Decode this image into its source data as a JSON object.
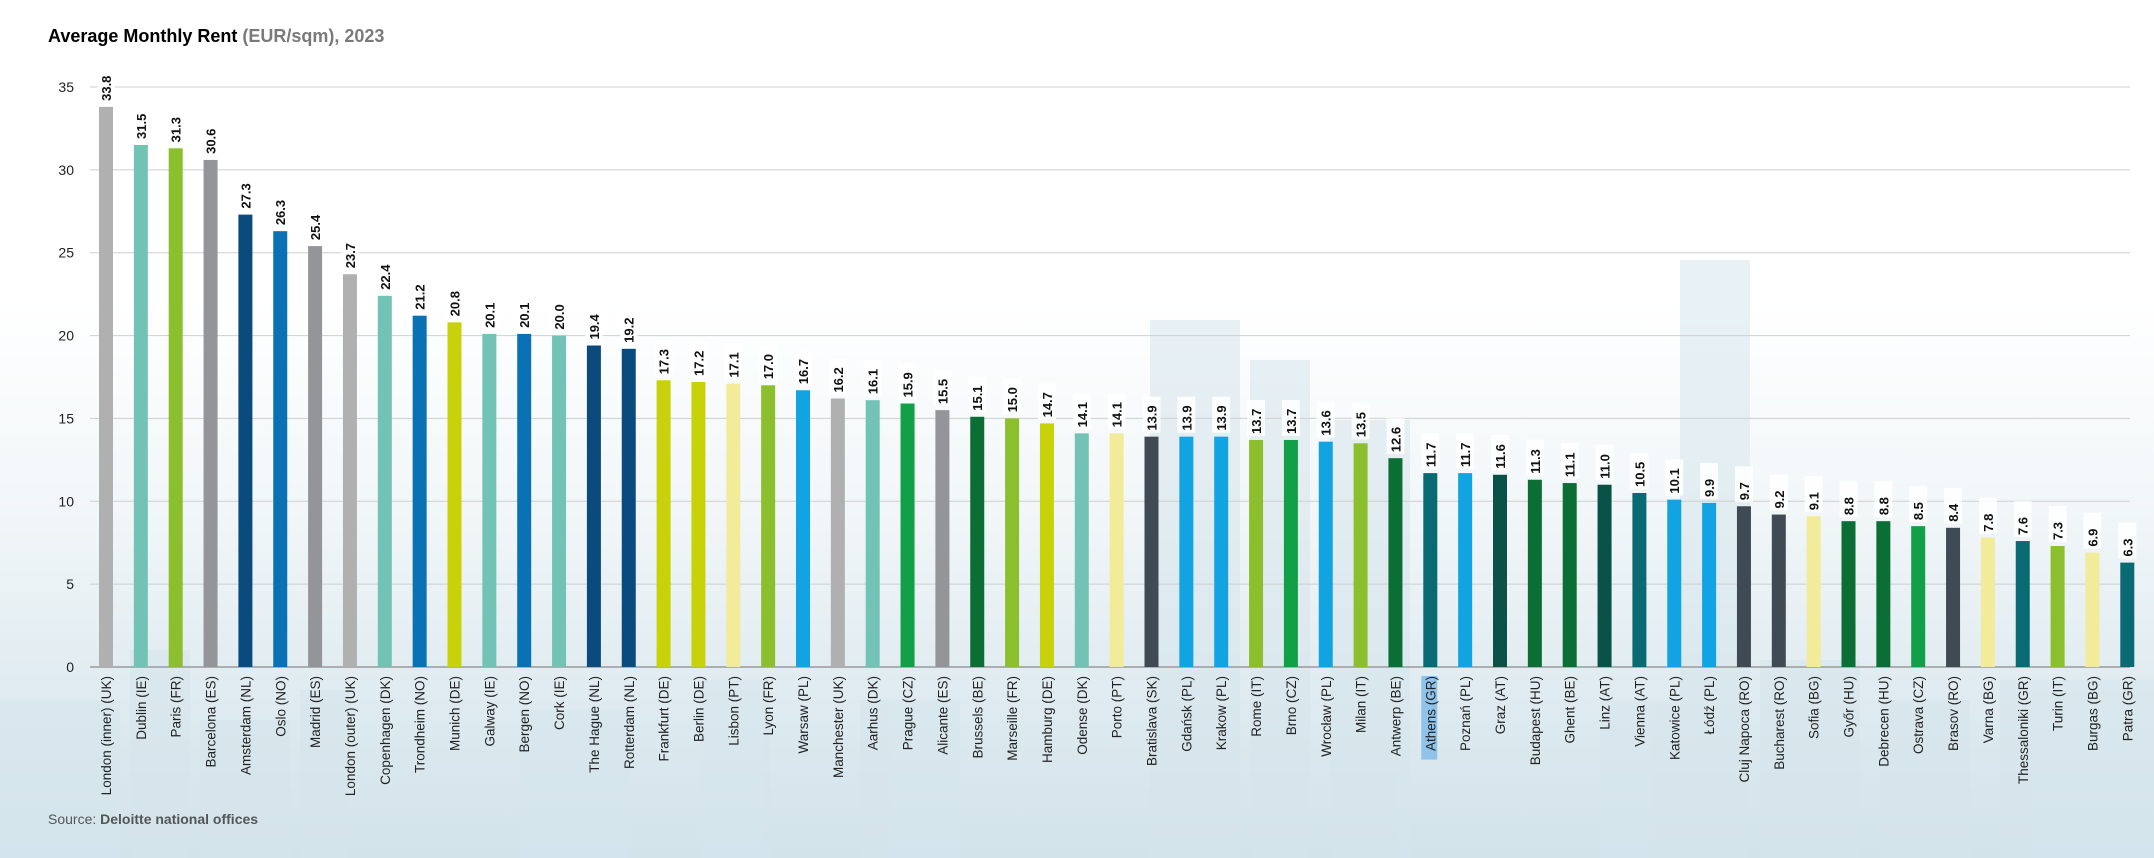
{
  "title": {
    "main": "Average Monthly Rent",
    "unit": "(EUR/sqm), 2023"
  },
  "source": {
    "label": "Source:",
    "value": "Deloitte national offices"
  },
  "chart_data": {
    "type": "bar",
    "title": "Average Monthly Rent (EUR/sqm), 2023",
    "ylim": [
      0,
      35
    ],
    "yticks": [
      0,
      5,
      10,
      15,
      20,
      25,
      30,
      35
    ],
    "grid": true,
    "categories": [
      "London (inner) (UK)",
      "Dublin (IE)",
      "Paris (FR)",
      "Barcelona (ES)",
      "Amsterdam (NL)",
      "Oslo (NO)",
      "Madrid (ES)",
      "London (outer) (UK)",
      "Copenhagen (DK)",
      "Trondheim (NO)",
      "Munich (DE)",
      "Galway (IE)",
      "Bergen (NO)",
      "Cork (IE)",
      "The Hague (NL)",
      "Rotterdam (NL)",
      "Frankfurt (DE)",
      "Berlin (DE)",
      "Lisbon (PT)",
      "Lyon (FR)",
      "Warsaw (PL)",
      "Manchester (UK)",
      "Aarhus (DK)",
      "Prague (CZ)",
      "Alicante (ES)",
      "Brussels (BE)",
      "Marseille (FR)",
      "Hamburg (DE)",
      "Odense (DK)",
      "Porto (PT)",
      "Bratislava (SK)",
      "Gdańsk (PL)",
      "Krakow (PL)",
      "Rome (IT)",
      "Brno (CZ)",
      "Wrocław (PL)",
      "Milan (IT)",
      "Antwerp (BE)",
      "Athens (GR)",
      "Poznań (PL)",
      "Graz (AT)",
      "Budapest (HU)",
      "Ghent (BE)",
      "Linz (AT)",
      "Vienna (AT)",
      "Katowice (PL)",
      "Łódź (PL)",
      "Cluj Napoca (RO)",
      "Bucharest (RO)",
      "Sofia (BG)",
      "Győr (HU)",
      "Debrecen (HU)",
      "Ostrava (CZ)",
      "Brasov (RO)",
      "Varna (BG)",
      "Thessaloniki (GR)",
      "Turin (IT)",
      "Burgas (BG)",
      "Patra (GR)"
    ],
    "values": [
      33.8,
      31.5,
      31.3,
      30.6,
      27.3,
      26.3,
      25.4,
      23.7,
      22.4,
      21.2,
      20.8,
      20.1,
      20.1,
      20.0,
      19.4,
      19.2,
      17.3,
      17.2,
      17.1,
      17.0,
      16.7,
      16.2,
      16.1,
      15.9,
      15.5,
      15.1,
      15.0,
      14.7,
      14.1,
      14.1,
      13.9,
      13.9,
      13.9,
      13.7,
      13.7,
      13.6,
      13.5,
      12.6,
      11.7,
      11.7,
      11.6,
      11.3,
      11.1,
      11.0,
      10.5,
      10.1,
      9.9,
      9.7,
      9.2,
      9.1,
      8.8,
      8.8,
      8.5,
      8.4,
      7.8,
      7.6,
      7.3,
      6.9,
      6.3
    ],
    "colors": [
      "#b0b0b0",
      "#72c3b6",
      "#8cbf2d",
      "#939598",
      "#0a4a7c",
      "#0a72b4",
      "#939598",
      "#b0b0b0",
      "#72c3b6",
      "#0a72b4",
      "#c8d20a",
      "#72c3b6",
      "#0a72b4",
      "#72c3b6",
      "#0a4a7c",
      "#0a4a7c",
      "#c8d20a",
      "#c8d20a",
      "#f2ec9a",
      "#8cbf2d",
      "#12a4e2",
      "#b0b0b0",
      "#72c3b6",
      "#11a048",
      "#939598",
      "#0a6e35",
      "#8cbf2d",
      "#c8d20a",
      "#72c3b6",
      "#f2ec9a",
      "#3f4a54",
      "#12a4e2",
      "#12a4e2",
      "#8cbf2d",
      "#11a048",
      "#12a4e2",
      "#8cbf2d",
      "#0a6e35",
      "#0a6a74",
      "#12a4e2",
      "#0a5248",
      "#0a6e35",
      "#0a6e35",
      "#0a5248",
      "#0a6a74",
      "#12a4e2",
      "#12a4e2",
      "#3f4a54",
      "#3f4a54",
      "#f2ec9a",
      "#0a6e35",
      "#0a6e35",
      "#11a048",
      "#3f4a54",
      "#f2ec9a",
      "#0a6a74",
      "#8cbf2d",
      "#f2ec9a",
      "#0a6a74"
    ],
    "highlighted_category": "Athens (GR)"
  }
}
